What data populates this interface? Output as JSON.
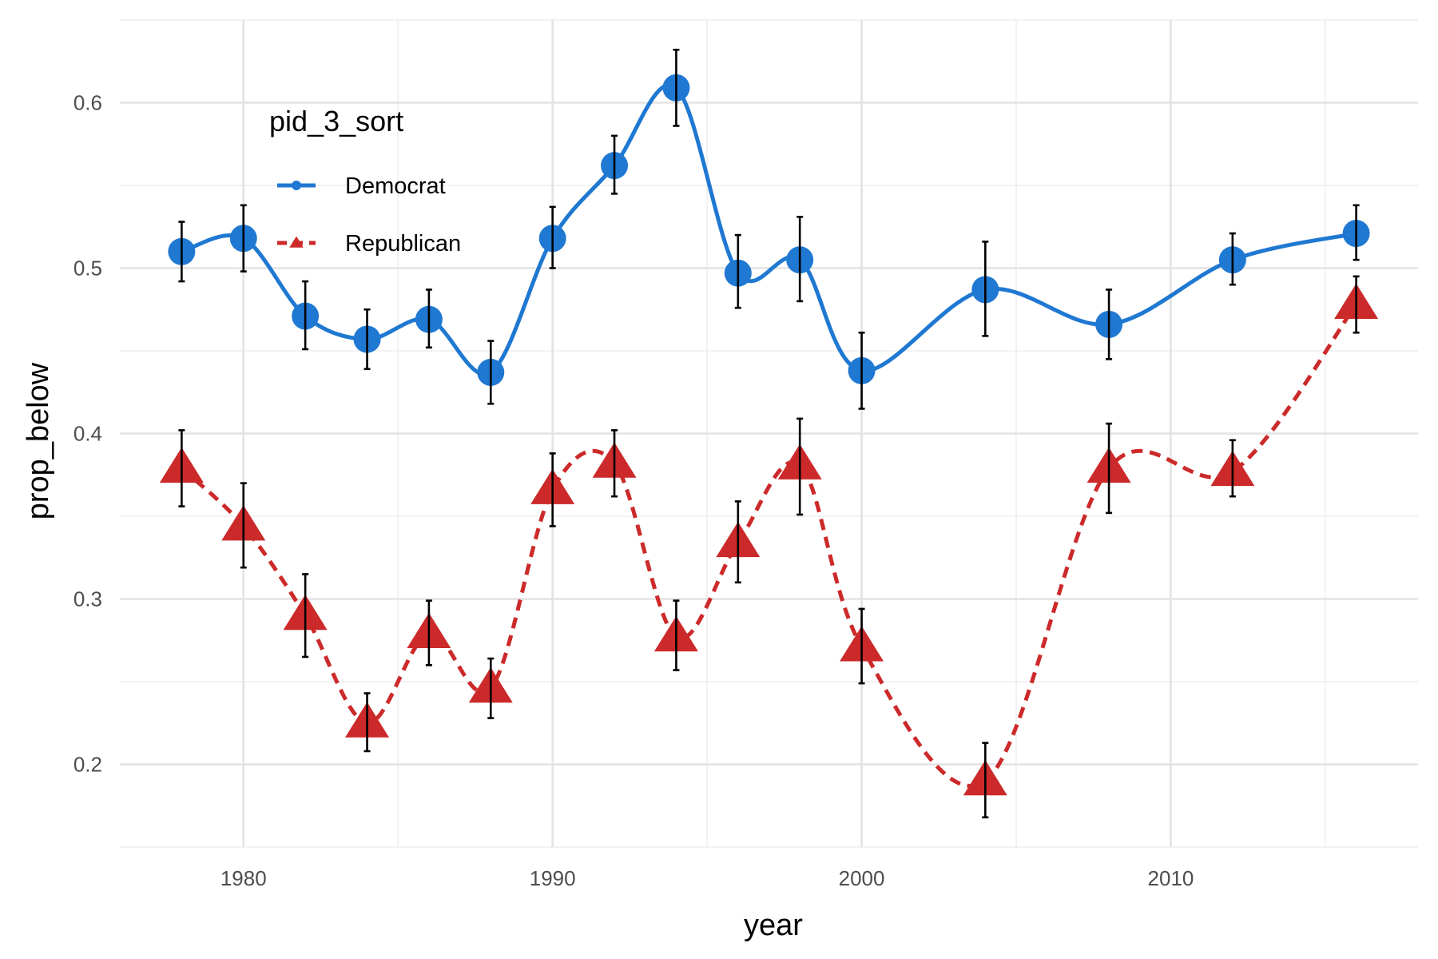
{
  "chart_data": {
    "type": "line",
    "title": "",
    "xlabel": "year",
    "ylabel": "prop_below",
    "xlim": [
      1976,
      2018
    ],
    "ylim": [
      0.15,
      0.65
    ],
    "x_ticks": [
      1980,
      1990,
      2000,
      2010
    ],
    "x_tick_labels": [
      "1980",
      "1990",
      "2000",
      "2010"
    ],
    "y_ticks": [
      0.2,
      0.3,
      0.4,
      0.5,
      0.6
    ],
    "y_tick_labels": [
      "0.2",
      "0.3",
      "0.4",
      "0.5",
      "0.6"
    ],
    "grid": true,
    "legend": {
      "title": "pid_3_sort",
      "position": "top-left",
      "entries": [
        "Democrat",
        "Republican"
      ]
    },
    "series": [
      {
        "name": "Democrat",
        "color": "#1f78d1",
        "marker": "circle",
        "line_style": "solid",
        "x": [
          1978,
          1980,
          1982,
          1984,
          1986,
          1988,
          1990,
          1992,
          1994,
          1996,
          1998,
          2000,
          2004,
          2008,
          2012,
          2016
        ],
        "values": [
          0.51,
          0.518,
          0.471,
          0.457,
          0.469,
          0.437,
          0.518,
          0.562,
          0.609,
          0.497,
          0.505,
          0.438,
          0.487,
          0.466,
          0.505,
          0.521
        ],
        "err_low": [
          0.492,
          0.498,
          0.451,
          0.439,
          0.452,
          0.418,
          0.5,
          0.545,
          0.586,
          0.476,
          0.48,
          0.415,
          0.459,
          0.445,
          0.49,
          0.505
        ],
        "err_high": [
          0.528,
          0.538,
          0.492,
          0.475,
          0.487,
          0.456,
          0.537,
          0.58,
          0.632,
          0.52,
          0.531,
          0.461,
          0.516,
          0.487,
          0.521,
          0.538
        ]
      },
      {
        "name": "Republican",
        "color": "#cc2a2a",
        "marker": "triangle",
        "line_style": "dashed",
        "x": [
          1978,
          1980,
          1982,
          1984,
          1986,
          1988,
          1990,
          1992,
          1994,
          1996,
          1998,
          2000,
          2004,
          2008,
          2012,
          2016
        ],
        "values": [
          0.379,
          0.344,
          0.29,
          0.225,
          0.279,
          0.246,
          0.366,
          0.382,
          0.277,
          0.334,
          0.381,
          0.271,
          0.19,
          0.379,
          0.377,
          0.478
        ],
        "err_low": [
          0.356,
          0.319,
          0.265,
          0.208,
          0.26,
          0.228,
          0.344,
          0.362,
          0.257,
          0.31,
          0.351,
          0.249,
          0.168,
          0.352,
          0.362,
          0.461
        ],
        "err_high": [
          0.402,
          0.37,
          0.315,
          0.243,
          0.299,
          0.264,
          0.388,
          0.402,
          0.299,
          0.359,
          0.409,
          0.294,
          0.213,
          0.406,
          0.396,
          0.495
        ]
      }
    ]
  }
}
